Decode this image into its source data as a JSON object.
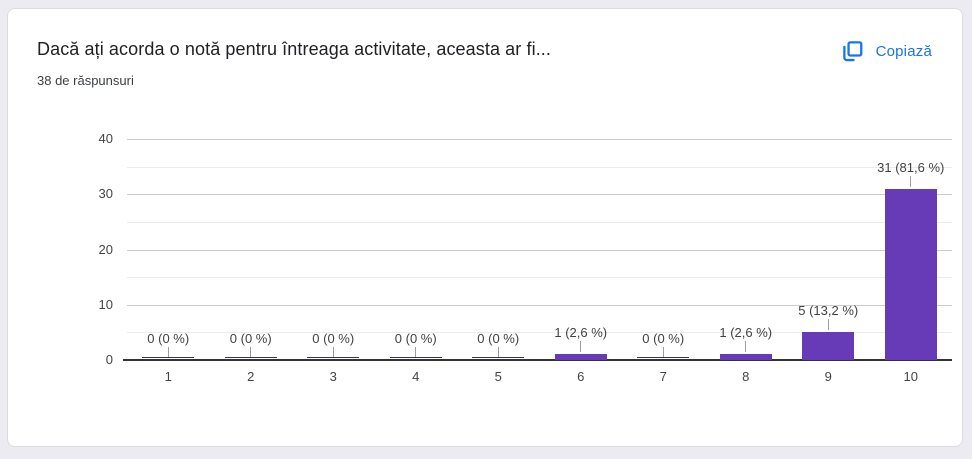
{
  "header": {
    "title": "Dacă ați acorda o notă pentru întreaga activitate, aceasta ar fi...",
    "response_count": "38 de răspunsuri",
    "copy_button_label": "Copiază",
    "copy_icon": "copy-icon"
  },
  "colors": {
    "accent_blue": "#1a73e8",
    "bar": "#673ab7",
    "zero_bar": "#39305e",
    "page_background": "#ecebf1",
    "card_background": "#ffffff",
    "card_border": "#dadce0",
    "gridline_major": "#cccccc",
    "gridline_minor": "#ebebeb",
    "axis_line": "#333333",
    "tick_text": "#444444",
    "value_text": "#424242",
    "leader_line": "#9e9e9e"
  },
  "chart_data": {
    "type": "bar",
    "title": "",
    "xlabel": "",
    "ylabel": "",
    "categories": [
      "1",
      "2",
      "3",
      "4",
      "5",
      "6",
      "7",
      "8",
      "9",
      "10"
    ],
    "values": [
      0,
      0,
      0,
      0,
      0,
      1,
      0,
      1,
      5,
      31
    ],
    "value_labels": [
      "0 (0 %)",
      "0 (0 %)",
      "0 (0 %)",
      "0 (0 %)",
      "0 (0 %)",
      "1 (2,6 %)",
      "0 (0 %)",
      "1 (2,6 %)",
      "5 (13,2 %)",
      "31 (81,6 %)"
    ],
    "total_responses": 38,
    "ylim": [
      0,
      40
    ],
    "yticks": [
      0,
      10,
      20,
      30,
      40
    ],
    "minor_yticks": [
      5,
      15,
      25,
      35
    ],
    "grid": "horizontal",
    "legend": "none"
  }
}
